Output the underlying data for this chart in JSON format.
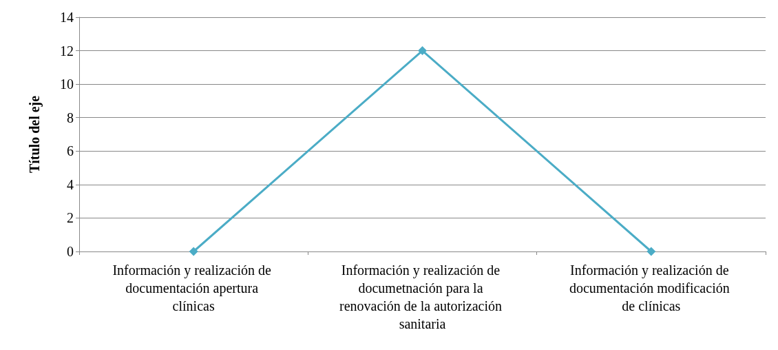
{
  "chart_data": {
    "type": "line",
    "ylabel": "Título del eje",
    "categories": [
      "Información y realización de documentación apertura clínicas",
      "Información y realización de documetnación para la renovación de la autorización sanitaria",
      "Información y realización de documentación modificación de clínicas"
    ],
    "series": [
      {
        "color": "#4bacc6",
        "values": [
          0,
          12,
          0
        ]
      }
    ],
    "ylim": [
      0,
      14
    ],
    "yticks": [
      0,
      2,
      4,
      6,
      8,
      10,
      12,
      14
    ],
    "grid": "y",
    "marker": "diamond",
    "line_style": "solid"
  }
}
